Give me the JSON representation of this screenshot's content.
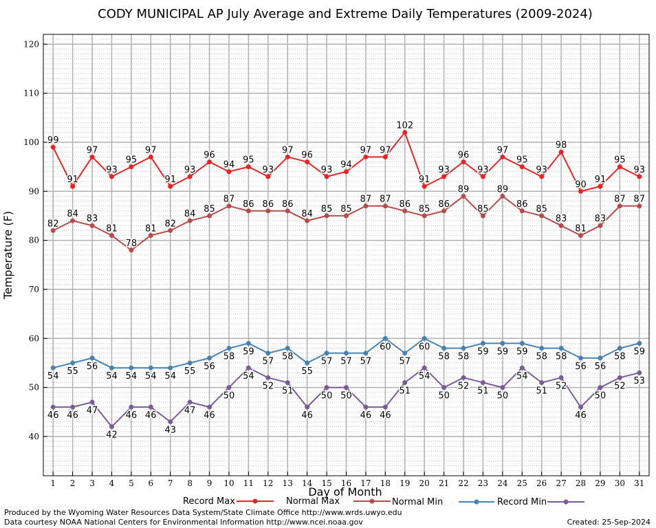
{
  "chart_data": {
    "type": "line",
    "title": "CODY MUNICIPAL AP July Average and Extreme Daily Temperatures (2009-2024)",
    "xlabel": "Day of Month",
    "ylabel": "Temperature (F)",
    "xlim": [
      0.5,
      31.5
    ],
    "ylim": [
      32,
      122
    ],
    "yticks": [
      40,
      50,
      60,
      70,
      80,
      90,
      100,
      110,
      120
    ],
    "categories": [
      1,
      2,
      3,
      4,
      5,
      6,
      7,
      8,
      9,
      10,
      11,
      12,
      13,
      14,
      15,
      16,
      17,
      18,
      19,
      20,
      21,
      22,
      23,
      24,
      25,
      26,
      27,
      28,
      29,
      30,
      31
    ],
    "grid": true,
    "legend": "bottom",
    "series": [
      {
        "name": "Record Max",
        "color": "#ee2222",
        "label_position": "above",
        "values": [
          99,
          91,
          97,
          93,
          95,
          97,
          91,
          93,
          96,
          94,
          95,
          93,
          97,
          96,
          93,
          94,
          97,
          97,
          102,
          91,
          93,
          96,
          93,
          97,
          95,
          93,
          98,
          90,
          91,
          95,
          93
        ]
      },
      {
        "name": "Normal Max",
        "color": "#b84a4a",
        "label_position": "above",
        "values": [
          82,
          84,
          83,
          81,
          78,
          81,
          82,
          84,
          85,
          87,
          86,
          86,
          86,
          84,
          85,
          85,
          87,
          87,
          86,
          85,
          86,
          89,
          85,
          89,
          86,
          85,
          83,
          81,
          83,
          87,
          87
        ]
      },
      {
        "name": "Normal Min",
        "color": "#4682b4",
        "label_position": "below",
        "values": [
          54,
          55,
          56,
          54,
          54,
          54,
          54,
          55,
          56,
          58,
          59,
          57,
          58,
          55,
          57,
          57,
          57,
          60,
          57,
          60,
          58,
          58,
          59,
          59,
          59,
          58,
          58,
          56,
          56,
          58,
          59
        ]
      },
      {
        "name": "Record Min",
        "color": "#7b5a9c",
        "label_position": "below",
        "values": [
          46,
          46,
          47,
          42,
          46,
          46,
          43,
          47,
          46,
          50,
          54,
          52,
          51,
          46,
          50,
          50,
          46,
          46,
          51,
          54,
          50,
          52,
          51,
          50,
          54,
          51,
          52,
          46,
          50,
          52,
          53
        ]
      }
    ]
  },
  "footer": {
    "produced_by": "Produced by the Wyoming Water Resources Data System/State Climate Office http://www.wrds.uwyo.edu",
    "data_courtesy": "Data courtesy NOAA National Centers for Environmental Information http://www.ncei.noaa.gov",
    "created": "Created: 25-Sep-2024"
  }
}
